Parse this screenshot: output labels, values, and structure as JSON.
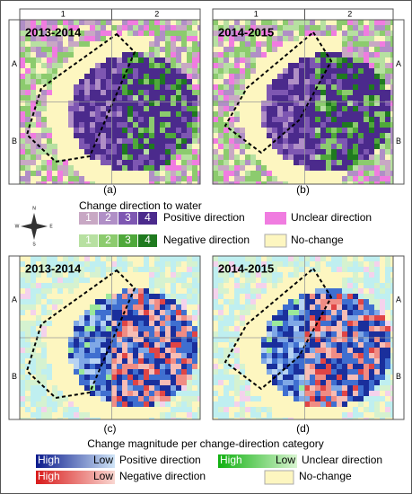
{
  "panels": [
    {
      "label": "(a)",
      "period": "2013-2014",
      "columns": [
        "1",
        "2"
      ],
      "rows": [
        "A",
        "B"
      ]
    },
    {
      "label": "(b)",
      "period": "2014-2015",
      "columns": [
        "1",
        "2"
      ],
      "rows": [
        "A",
        "B"
      ]
    },
    {
      "label": "(c)",
      "period": "2013-2014",
      "rows": [
        "A",
        "B"
      ]
    },
    {
      "label": "(d)",
      "period": "2014-2015",
      "rows": [
        "A",
        "B"
      ]
    }
  ],
  "compass": {
    "n": "N",
    "s": "S",
    "e": "E",
    "w": "W"
  },
  "legend_direction": {
    "title": "Change direction to water",
    "positive": {
      "classes": [
        "1",
        "2",
        "3",
        "4"
      ],
      "label": "Positive direction"
    },
    "negative": {
      "classes": [
        "1",
        "2",
        "3",
        "4"
      ],
      "label": "Negative direction"
    },
    "unclear": "Unclear direction",
    "no_change": "No-change"
  },
  "legend_magnitude": {
    "title": "Change magnitude per change-direction category",
    "positive": {
      "high": "High",
      "low": "Low",
      "label": "Positive direction"
    },
    "negative": {
      "high": "High",
      "low": "Low",
      "label": "Negative direction"
    },
    "unclear": {
      "high": "High",
      "low": "Low",
      "label": "Unclear direction"
    },
    "no_change": "No-change"
  }
}
